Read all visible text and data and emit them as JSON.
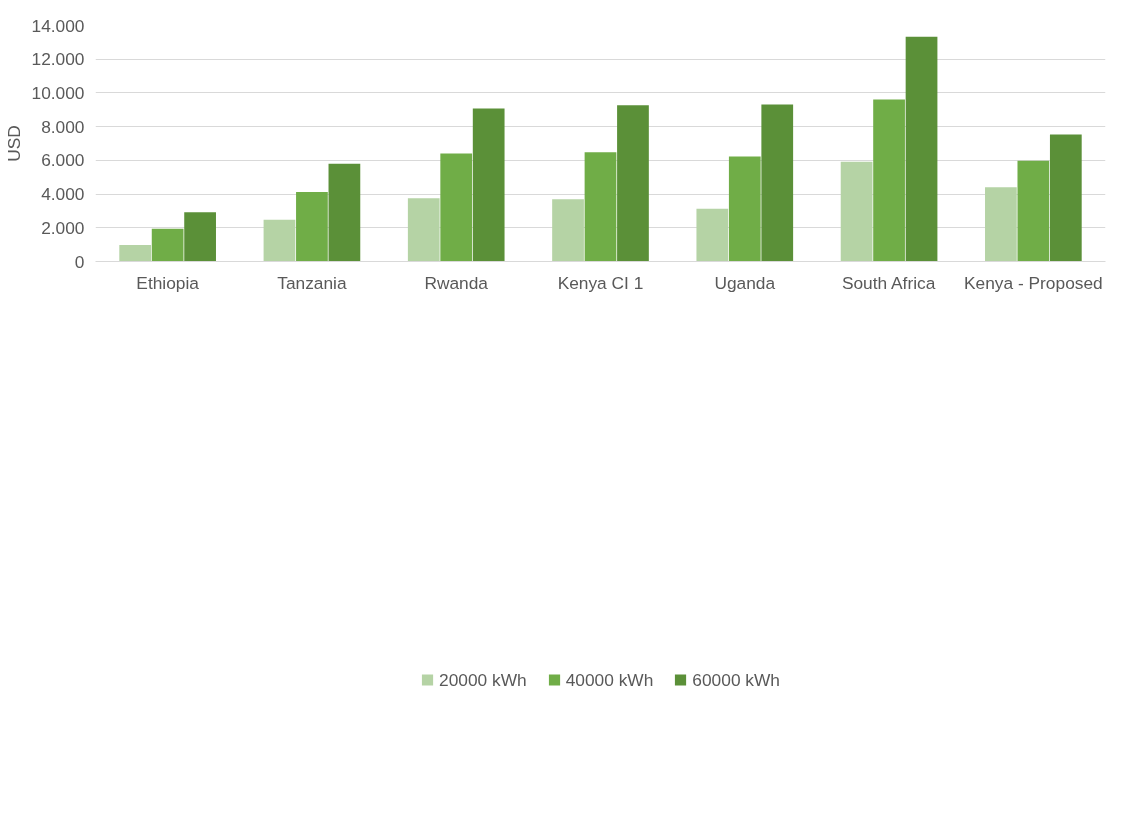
{
  "chart_data": {
    "type": "bar",
    "ylabel": "USD",
    "categories": [
      "Ethiopia",
      "Tanzania",
      "Rwanda",
      "Kenya CI 1",
      "Uganda",
      "South Africa",
      "Kenya - Proposed"
    ],
    "series": [
      {
        "name": "20000 kWh",
        "color": "#b5d3a5",
        "values": [
          980,
          2470,
          3750,
          3700,
          3130,
          5920,
          4400
        ]
      },
      {
        "name": "40000 kWh",
        "color": "#70ad47",
        "values": [
          1950,
          4130,
          6400,
          6480,
          6230,
          9610,
          5970
        ]
      },
      {
        "name": "60000 kWh",
        "color": "#5b9038",
        "values": [
          2920,
          5800,
          9080,
          9270,
          9320,
          13330,
          7530
        ]
      }
    ],
    "ylim": [
      0,
      14000
    ],
    "yticks": [
      0,
      {
        "value": 2000,
        "label": "2.000"
      },
      {
        "value": 4000,
        "label": "4.000"
      },
      {
        "value": 6000,
        "label": "6.000"
      },
      {
        "value": 8000,
        "label": "8.000"
      },
      {
        "value": 10000,
        "label": "10.000"
      },
      {
        "value": 12000,
        "label": "12.000"
      },
      {
        "value": 14000,
        "label": "14.000"
      }
    ],
    "grid": "y",
    "legend": "bottom"
  }
}
